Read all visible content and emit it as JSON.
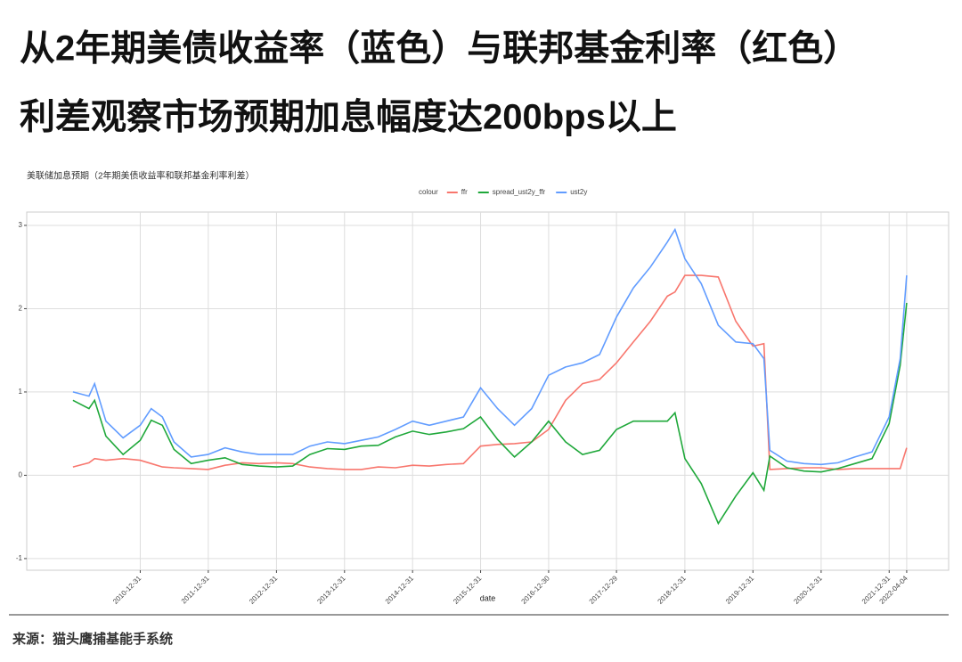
{
  "header": {
    "title_lines": [
      "从2年期美债收益率（蓝色）与联邦基金利率（红色）",
      "利差观察市场预期加息幅度达200bps以上"
    ]
  },
  "chart_data": {
    "type": "line",
    "title": "美联储加息预期（2年期美债收益率和联邦基金利率利差）",
    "legend_title": "colour",
    "legend": "top",
    "grid": true,
    "xlabel": "date",
    "x": [
      "2010-01-04",
      "2010-03-31",
      "2010-04-30",
      "2010-06-30",
      "2010-09-30",
      "2010-12-31",
      "2011-02-28",
      "2011-04-29",
      "2011-06-30",
      "2011-09-30",
      "2011-12-30",
      "2012-03-30",
      "2012-06-29",
      "2012-09-28",
      "2012-12-31",
      "2013-03-28",
      "2013-06-28",
      "2013-09-30",
      "2013-12-31",
      "2014-03-31",
      "2014-06-30",
      "2014-09-30",
      "2014-12-31",
      "2015-03-31",
      "2015-06-30",
      "2015-09-30",
      "2015-12-31",
      "2016-03-31",
      "2016-06-30",
      "2016-09-30",
      "2016-12-30",
      "2017-03-31",
      "2017-06-30",
      "2017-09-29",
      "2017-12-29",
      "2018-03-30",
      "2018-06-29",
      "2018-09-28",
      "2018-11-08",
      "2018-12-31",
      "2019-03-29",
      "2019-06-28",
      "2019-09-30",
      "2019-12-31",
      "2020-02-28",
      "2020-03-31",
      "2020-06-30",
      "2020-09-30",
      "2020-12-31",
      "2021-03-31",
      "2021-06-30",
      "2021-09-30",
      "2021-12-31",
      "2022-02-28",
      "2022-04-04"
    ],
    "xlim": [
      "2009-05-01",
      "2022-11-15"
    ],
    "xticks": [
      "2010-12-31",
      "2011-12-31",
      "2012-12-31",
      "2013-12-31",
      "2014-12-31",
      "2015-12-31",
      "2016-12-30",
      "2017-12-29",
      "2018-12-31",
      "2019-12-31",
      "2020-12-31",
      "2021-12-31",
      "2022-04-04"
    ],
    "ylim": [
      -1.14,
      3.16
    ],
    "yticks": [
      -1,
      0,
      1,
      2,
      3
    ],
    "series": [
      {
        "name": "ffr",
        "color": "#F8766D",
        "values": [
          0.1,
          0.15,
          0.2,
          0.18,
          0.2,
          0.18,
          0.14,
          0.1,
          0.09,
          0.08,
          0.07,
          0.12,
          0.15,
          0.14,
          0.15,
          0.14,
          0.1,
          0.08,
          0.07,
          0.07,
          0.1,
          0.09,
          0.12,
          0.11,
          0.13,
          0.14,
          0.35,
          0.37,
          0.38,
          0.4,
          0.55,
          0.9,
          1.1,
          1.15,
          1.35,
          1.6,
          1.85,
          2.15,
          2.2,
          2.4,
          2.4,
          2.38,
          1.85,
          1.55,
          1.58,
          0.07,
          0.08,
          0.09,
          0.09,
          0.07,
          0.08,
          0.08,
          0.08,
          0.08,
          0.33
        ]
      },
      {
        "name": "spread_ust2y_ffr",
        "color": "#1FA83A",
        "values": [
          0.9,
          0.8,
          0.9,
          0.47,
          0.25,
          0.42,
          0.66,
          0.6,
          0.31,
          0.14,
          0.18,
          0.21,
          0.13,
          0.11,
          0.1,
          0.11,
          0.25,
          0.32,
          0.31,
          0.35,
          0.36,
          0.46,
          0.53,
          0.49,
          0.52,
          0.56,
          0.7,
          0.43,
          0.22,
          0.4,
          0.65,
          0.4,
          0.25,
          0.3,
          0.55,
          0.65,
          0.65,
          0.65,
          0.75,
          0.2,
          -0.1,
          -0.58,
          -0.25,
          0.03,
          -0.18,
          0.23,
          0.09,
          0.05,
          0.04,
          0.08,
          0.14,
          0.2,
          0.62,
          1.32,
          2.07
        ]
      },
      {
        "name": "ust2y",
        "color": "#619CFF",
        "values": [
          1.0,
          0.95,
          1.1,
          0.65,
          0.45,
          0.6,
          0.8,
          0.7,
          0.4,
          0.22,
          0.25,
          0.33,
          0.28,
          0.25,
          0.25,
          0.25,
          0.35,
          0.4,
          0.38,
          0.42,
          0.46,
          0.55,
          0.65,
          0.6,
          0.65,
          0.7,
          1.05,
          0.8,
          0.6,
          0.8,
          1.2,
          1.3,
          1.35,
          1.45,
          1.9,
          2.25,
          2.5,
          2.8,
          2.95,
          2.6,
          2.3,
          1.8,
          1.6,
          1.58,
          1.4,
          0.3,
          0.17,
          0.14,
          0.13,
          0.15,
          0.22,
          0.28,
          0.7,
          1.4,
          2.4
        ]
      }
    ]
  },
  "footer": {
    "source": "来源：猫头鹰捕基能手系统"
  }
}
